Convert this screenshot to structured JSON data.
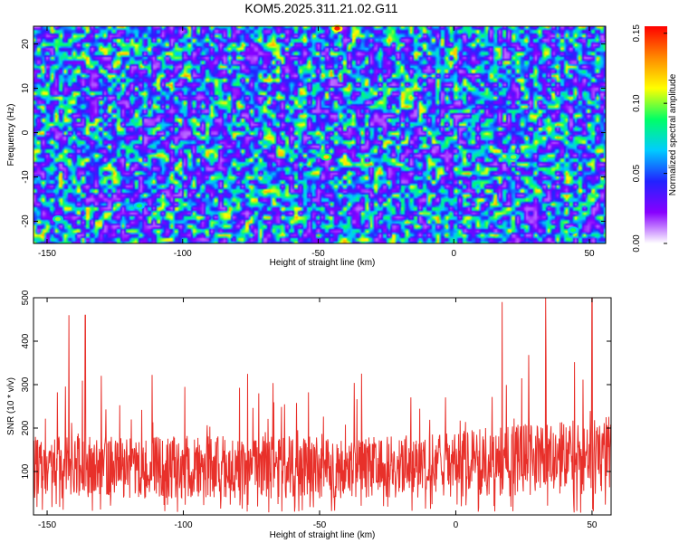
{
  "title": "KOM5.2025.311.21.02.G11",
  "chart_data": [
    {
      "type": "heatmap",
      "xlabel": "Height of straight line (km)",
      "ylabel": "Frequency (Hz)",
      "xlim": [
        -155,
        56
      ],
      "ylim": [
        -25,
        24
      ],
      "xticks": [
        -150,
        -100,
        -50,
        0,
        50
      ],
      "yticks": [
        -20,
        -10,
        0,
        10,
        20
      ],
      "colorbar": {
        "label": "Normalized spectral amplitude",
        "range": [
          0.0,
          0.155
        ],
        "ticks": [
          "0.00",
          "0.05",
          "0.10",
          "0.15"
        ],
        "tick_values": [
          0.0,
          0.05,
          0.1,
          0.15
        ],
        "colormap": [
          "#ffffff",
          "#8800ff",
          "#2222ff",
          "#00ccff",
          "#00ff66",
          "#ffff00",
          "#ff8800",
          "#ff0000"
        ]
      },
      "grid": false,
      "noise_texture": true,
      "notable_hotspots": [
        {
          "x": -43,
          "y": 23.5,
          "value": 0.15
        },
        {
          "x": -47,
          "y": -5.5,
          "value": 0.12
        },
        {
          "x": -116,
          "y": -16.5,
          "value": 0.09
        },
        {
          "x": -146,
          "y": -19.5,
          "value": 0.1
        },
        {
          "x": 22,
          "y": -5.5,
          "value": 0.1
        },
        {
          "x": 44,
          "y": -22,
          "value": 0.09
        }
      ]
    },
    {
      "type": "line",
      "xlabel": "Height of straight line (km)",
      "ylabel": "SNR (10 * v/v)",
      "xlim": [
        -155,
        57
      ],
      "ylim": [
        0,
        500
      ],
      "xticks": [
        -150,
        -100,
        -50,
        0,
        50
      ],
      "yticks": [
        100,
        200,
        300,
        400,
        500
      ],
      "series": [
        {
          "color": "#e8302a",
          "baseline": 110,
          "spread": 90,
          "noise": true
        }
      ],
      "notable_peaks": [
        {
          "x": -142,
          "y": 460
        },
        {
          "x": -136,
          "y": 460
        },
        {
          "x": 17,
          "y": 490
        },
        {
          "x": 33,
          "y": 500
        },
        {
          "x": 50,
          "y": 500
        }
      ]
    }
  ]
}
